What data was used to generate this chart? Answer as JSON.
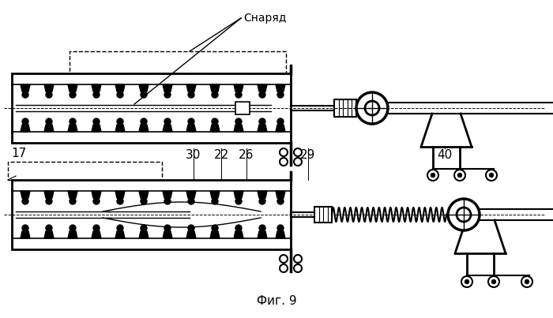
{
  "title": "Фиг. 9",
  "label_snaryad": "Снаряд",
  "label_17": "17",
  "label_30": "30",
  "label_22": "22",
  "label_26": "26",
  "label_29": "29",
  "label_40": "40",
  "bg_color": "#ffffff",
  "line_color": "#000000",
  "fig_width": 7.0,
  "fig_height": 4.03
}
